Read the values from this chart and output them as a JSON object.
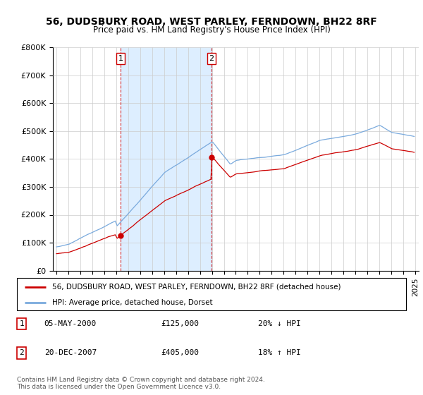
{
  "title": "56, DUDSBURY ROAD, WEST PARLEY, FERNDOWN, BH22 8RF",
  "subtitle": "Price paid vs. HM Land Registry's House Price Index (HPI)",
  "legend_line1": "56, DUDSBURY ROAD, WEST PARLEY, FERNDOWN, BH22 8RF (detached house)",
  "legend_line2": "HPI: Average price, detached house, Dorset",
  "footnote1": "Contains HM Land Registry data © Crown copyright and database right 2024.",
  "footnote2": "This data is licensed under the Open Government Licence v3.0.",
  "transaction1_date": "05-MAY-2000",
  "transaction1_price": "£125,000",
  "transaction1_hpi": "20% ↓ HPI",
  "transaction2_date": "20-DEC-2007",
  "transaction2_price": "£405,000",
  "transaction2_hpi": "18% ↑ HPI",
  "sale1_x": 2000.35,
  "sale1_y": 125000,
  "sale2_x": 2007.97,
  "sale2_y": 405000,
  "vline1_x": 2000.35,
  "vline2_x": 2007.97,
  "ylim": [
    0,
    800000
  ],
  "xlim_start": 1994.7,
  "xlim_end": 2025.3,
  "red_color": "#cc0000",
  "blue_color": "#7aaadd",
  "shade_color": "#ddeeff",
  "grid_color": "#cccccc",
  "background_color": "#ffffff"
}
